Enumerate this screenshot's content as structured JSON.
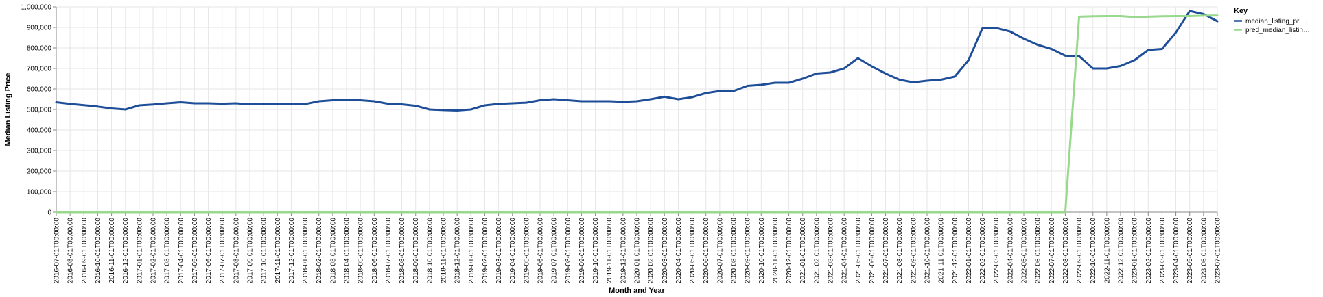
{
  "chart_data": {
    "type": "line",
    "xlabel": "Month and Year",
    "ylabel": "Median Listing Price",
    "ylim": [
      0,
      1000000
    ],
    "y_ticks": [
      0,
      100000,
      200000,
      300000,
      400000,
      500000,
      600000,
      700000,
      800000,
      900000,
      1000000
    ],
    "y_tick_labels": [
      "0",
      "100,000",
      "200,000",
      "300,000",
      "400,000",
      "500,000",
      "600,000",
      "700,000",
      "800,000",
      "900,000",
      "1,000,000"
    ],
    "grid": true,
    "legend_position": "right",
    "legend_title": "Key",
    "categories": [
      "2016-07-01T00:00:00",
      "2016-08-01T00:00:00",
      "2016-09-01T00:00:00",
      "2016-10-01T00:00:00",
      "2016-11-01T00:00:00",
      "2016-12-01T00:00:00",
      "2017-01-01T00:00:00",
      "2017-02-01T00:00:00",
      "2017-03-01T00:00:00",
      "2017-04-01T00:00:00",
      "2017-05-01T00:00:00",
      "2017-06-01T00:00:00",
      "2017-07-01T00:00:00",
      "2017-08-01T00:00:00",
      "2017-09-01T00:00:00",
      "2017-10-01T00:00:00",
      "2017-11-01T00:00:00",
      "2017-12-01T00:00:00",
      "2018-01-01T00:00:00",
      "2018-02-01T00:00:00",
      "2018-03-01T00:00:00",
      "2018-04-01T00:00:00",
      "2018-05-01T00:00:00",
      "2018-06-01T00:00:00",
      "2018-07-01T00:00:00",
      "2018-08-01T00:00:00",
      "2018-09-01T00:00:00",
      "2018-10-01T00:00:00",
      "2018-11-01T00:00:00",
      "2018-12-01T00:00:00",
      "2019-01-01T00:00:00",
      "2019-02-01T00:00:00",
      "2019-03-01T00:00:00",
      "2019-04-01T00:00:00",
      "2019-05-01T00:00:00",
      "2019-06-01T00:00:00",
      "2019-07-01T00:00:00",
      "2019-08-01T00:00:00",
      "2019-09-01T00:00:00",
      "2019-10-01T00:00:00",
      "2019-11-01T00:00:00",
      "2019-12-01T00:00:00",
      "2020-01-01T00:00:00",
      "2020-02-01T00:00:00",
      "2020-03-01T00:00:00",
      "2020-04-01T00:00:00",
      "2020-05-01T00:00:00",
      "2020-06-01T00:00:00",
      "2020-07-01T00:00:00",
      "2020-08-01T00:00:00",
      "2020-09-01T00:00:00",
      "2020-10-01T00:00:00",
      "2020-11-01T00:00:00",
      "2020-12-01T00:00:00",
      "2021-01-01T00:00:00",
      "2021-02-01T00:00:00",
      "2021-03-01T00:00:00",
      "2021-04-01T00:00:00",
      "2021-05-01T00:00:00",
      "2021-06-01T00:00:00",
      "2021-07-01T00:00:00",
      "2021-08-01T00:00:00",
      "2021-09-01T00:00:00",
      "2021-10-01T00:00:00",
      "2021-11-01T00:00:00",
      "2021-12-01T00:00:00",
      "2022-01-01T00:00:00",
      "2022-02-01T00:00:00",
      "2022-03-01T00:00:00",
      "2022-04-01T00:00:00",
      "2022-05-01T00:00:00",
      "2022-06-01T00:00:00",
      "2022-07-01T00:00:00",
      "2022-08-01T00:00:00",
      "2022-09-01T00:00:00",
      "2022-10-01T00:00:00",
      "2022-11-01T00:00:00",
      "2022-12-01T00:00:00",
      "2023-01-01T00:00:00",
      "2023-02-01T00:00:00",
      "2023-03-01T00:00:00",
      "2023-04-01T00:00:00",
      "2023-05-01T00:00:00",
      "2023-06-01T00:00:00",
      "2023-07-01T00:00:00"
    ],
    "series": [
      {
        "name": "median_listing_pri…",
        "color": "#1f4e99",
        "values": [
          535000,
          527000,
          521000,
          514000,
          505000,
          500000,
          520000,
          524000,
          530000,
          535000,
          530000,
          530000,
          528000,
          530000,
          525000,
          528000,
          526000,
          526000,
          526000,
          540000,
          545000,
          548000,
          545000,
          540000,
          528000,
          525000,
          518000,
          500000,
          497000,
          495000,
          500000,
          520000,
          527000,
          530000,
          533000,
          545000,
          550000,
          545000,
          540000,
          540000,
          540000,
          537000,
          540000,
          550000,
          562000,
          550000,
          560000,
          580000,
          590000,
          590000,
          615000,
          620000,
          630000,
          630000,
          650000,
          675000,
          680000,
          700000,
          750000,
          710000,
          675000,
          645000,
          632000,
          640000,
          645000,
          660000,
          740000,
          895000,
          897000,
          880000,
          845000,
          815000,
          795000,
          762000,
          760000,
          700000,
          700000,
          712000,
          740000,
          790000,
          795000,
          875000,
          980000,
          965000,
          930000
        ]
      },
      {
        "name": "pred_median_listin…",
        "color": "#98d98e",
        "values": [
          0,
          0,
          0,
          0,
          0,
          0,
          0,
          0,
          0,
          0,
          0,
          0,
          0,
          0,
          0,
          0,
          0,
          0,
          0,
          0,
          0,
          0,
          0,
          0,
          0,
          0,
          0,
          0,
          0,
          0,
          0,
          0,
          0,
          0,
          0,
          0,
          0,
          0,
          0,
          0,
          0,
          0,
          0,
          0,
          0,
          0,
          0,
          0,
          0,
          0,
          0,
          0,
          0,
          0,
          0,
          0,
          0,
          0,
          0,
          0,
          0,
          0,
          0,
          0,
          0,
          0,
          0,
          0,
          0,
          0,
          0,
          0,
          0,
          0,
          952000,
          954000,
          955000,
          955000,
          950000,
          952000,
          954000,
          955000,
          955000,
          957000,
          958000
        ]
      }
    ]
  }
}
